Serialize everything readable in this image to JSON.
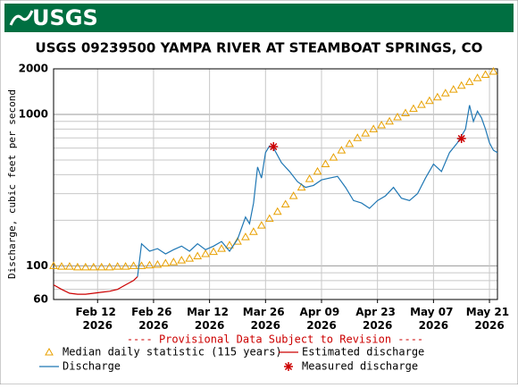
{
  "header": {
    "logo": "USGS"
  },
  "chart_data": {
    "type": "line",
    "title": "USGS 09239500 YAMPA RIVER AT STEAMBOAT SPRINGS, CO",
    "y_label": "Discharge, cubic feet per second",
    "note": "---- Provisional Data Subject to Revision ----",
    "log_y": true,
    "grid": true,
    "ylim": [
      60,
      2000
    ],
    "yticks": [
      60,
      100,
      1000,
      2000
    ],
    "minor_yticks": [
      70,
      80,
      90,
      200,
      300,
      400,
      500,
      600,
      700,
      800,
      900
    ],
    "xlim": [
      "2026-02-01",
      "2026-05-23"
    ],
    "xticks": [
      {
        "value": "2026-02-12",
        "label": "Feb 12 2026"
      },
      {
        "value": "2026-02-26",
        "label": "Feb 26 2026"
      },
      {
        "value": "2026-03-12",
        "label": "Mar 12 2026"
      },
      {
        "value": "2026-03-26",
        "label": "Mar 26 2026"
      },
      {
        "value": "2026-04-09",
        "label": "Apr 09 2026"
      },
      {
        "value": "2026-04-23",
        "label": "Apr 23 2026"
      },
      {
        "value": "2026-05-07",
        "label": "May 07 2026"
      },
      {
        "value": "2026-05-21",
        "label": "May 21 2026"
      }
    ],
    "series": [
      {
        "name": "Median daily statistic (115 years)",
        "color": "#e8a000",
        "style": "triangle",
        "x": [
          "2026-02-01",
          "2026-02-03",
          "2026-02-05",
          "2026-02-07",
          "2026-02-09",
          "2026-02-11",
          "2026-02-13",
          "2026-02-15",
          "2026-02-17",
          "2026-02-19",
          "2026-02-21",
          "2026-02-23",
          "2026-02-25",
          "2026-02-27",
          "2026-03-01",
          "2026-03-03",
          "2026-03-05",
          "2026-03-07",
          "2026-03-09",
          "2026-03-11",
          "2026-03-13",
          "2026-03-15",
          "2026-03-17",
          "2026-03-19",
          "2026-03-21",
          "2026-03-23",
          "2026-03-25",
          "2026-03-27",
          "2026-03-29",
          "2026-03-31",
          "2026-04-02",
          "2026-04-04",
          "2026-04-06",
          "2026-04-08",
          "2026-04-10",
          "2026-04-12",
          "2026-04-14",
          "2026-04-16",
          "2026-04-18",
          "2026-04-20",
          "2026-04-22",
          "2026-04-24",
          "2026-04-26",
          "2026-04-28",
          "2026-04-30",
          "2026-05-02",
          "2026-05-04",
          "2026-05-06",
          "2026-05-08",
          "2026-05-10",
          "2026-05-12",
          "2026-05-14",
          "2026-05-16",
          "2026-05-18",
          "2026-05-20",
          "2026-05-22"
        ],
        "values": [
          100,
          99,
          99,
          98,
          98,
          98,
          98,
          98,
          99,
          99,
          100,
          100,
          101,
          102,
          104,
          106,
          109,
          112,
          116,
          120,
          124,
          130,
          137,
          145,
          155,
          168,
          185,
          205,
          228,
          255,
          290,
          330,
          375,
          420,
          470,
          520,
          580,
          640,
          700,
          750,
          800,
          850,
          900,
          960,
          1020,
          1090,
          1160,
          1230,
          1300,
          1380,
          1460,
          1550,
          1640,
          1740,
          1830,
          1920
        ]
      },
      {
        "name": "Estimated discharge",
        "color": "#cc0000",
        "style": "line",
        "x": [
          "2026-02-01",
          "2026-02-03",
          "2026-02-05",
          "2026-02-07",
          "2026-02-09",
          "2026-02-11",
          "2026-02-13",
          "2026-02-15",
          "2026-02-17",
          "2026-02-19",
          "2026-02-21",
          "2026-02-22"
        ],
        "values": [
          75,
          70,
          66,
          65,
          65,
          66,
          67,
          68,
          70,
          75,
          80,
          85
        ]
      },
      {
        "name": "Discharge",
        "color": "#1f77b4",
        "style": "line",
        "x": [
          "2026-02-22",
          "2026-02-23",
          "2026-02-25",
          "2026-02-27",
          "2026-03-01",
          "2026-03-03",
          "2026-03-05",
          "2026-03-07",
          "2026-03-09",
          "2026-03-11",
          "2026-03-13",
          "2026-03-15",
          "2026-03-17",
          "2026-03-19",
          "2026-03-21",
          "2026-03-22",
          "2026-03-23",
          "2026-03-24",
          "2026-03-25",
          "2026-03-26",
          "2026-03-27",
          "2026-03-28",
          "2026-03-30",
          "2026-04-01",
          "2026-04-03",
          "2026-04-05",
          "2026-04-07",
          "2026-04-09",
          "2026-04-11",
          "2026-04-13",
          "2026-04-15",
          "2026-04-17",
          "2026-04-19",
          "2026-04-21",
          "2026-04-23",
          "2026-04-25",
          "2026-04-27",
          "2026-04-29",
          "2026-05-01",
          "2026-05-03",
          "2026-05-05",
          "2026-05-07",
          "2026-05-09",
          "2026-05-11",
          "2026-05-13",
          "2026-05-15",
          "2026-05-16",
          "2026-05-17",
          "2026-05-18",
          "2026-05-19",
          "2026-05-20",
          "2026-05-21",
          "2026-05-22",
          "2026-05-23"
        ],
        "values": [
          85,
          140,
          125,
          130,
          120,
          128,
          135,
          125,
          140,
          128,
          135,
          145,
          125,
          150,
          210,
          190,
          260,
          450,
          380,
          560,
          620,
          600,
          480,
          420,
          360,
          330,
          340,
          370,
          380,
          390,
          330,
          270,
          260,
          240,
          270,
          290,
          330,
          280,
          270,
          300,
          380,
          470,
          420,
          560,
          650,
          800,
          1150,
          900,
          1050,
          950,
          800,
          650,
          580,
          560
        ]
      },
      {
        "name": "Measured discharge",
        "color": "#cc0000",
        "style": "asterisk",
        "x": [
          "2026-03-28",
          "2026-05-14"
        ],
        "values": [
          613,
          693
        ]
      }
    ]
  }
}
